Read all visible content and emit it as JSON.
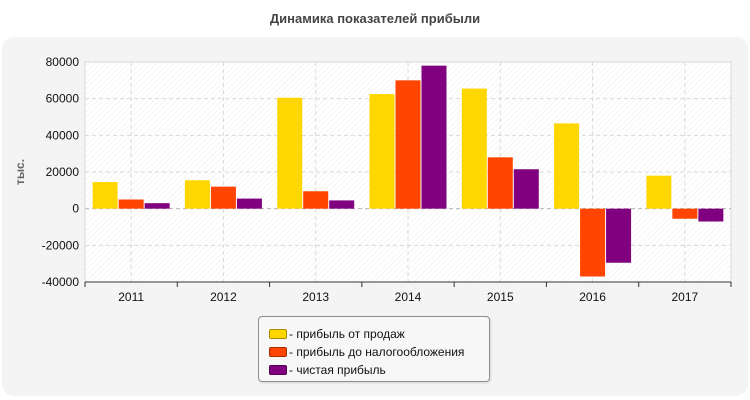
{
  "chart_data": {
    "type": "bar",
    "title": "Динамика показателей прибыли",
    "xlabel": "",
    "ylabel": "тыс.",
    "ylim": [
      -40000,
      80000
    ],
    "yticks": [
      80000,
      60000,
      40000,
      20000,
      0,
      -20000,
      -40000
    ],
    "categories": [
      "2011",
      "2012",
      "2013",
      "2014",
      "2015",
      "2016",
      "2017"
    ],
    "grid": true,
    "legend_position": "bottom",
    "series": [
      {
        "name": "прибыль от продаж",
        "color": "#ffd700",
        "values": [
          14500,
          15500,
          60500,
          62500,
          65500,
          46500,
          18000
        ]
      },
      {
        "name": "прибыль до налогообложения",
        "color": "#ff4500",
        "values": [
          5000,
          12000,
          9500,
          70000,
          28000,
          -37000,
          -5500
        ]
      },
      {
        "name": "чистая прибыль",
        "color": "#800080",
        "values": [
          3000,
          5500,
          4500,
          78000,
          21500,
          -29500,
          -7000
        ]
      }
    ]
  }
}
